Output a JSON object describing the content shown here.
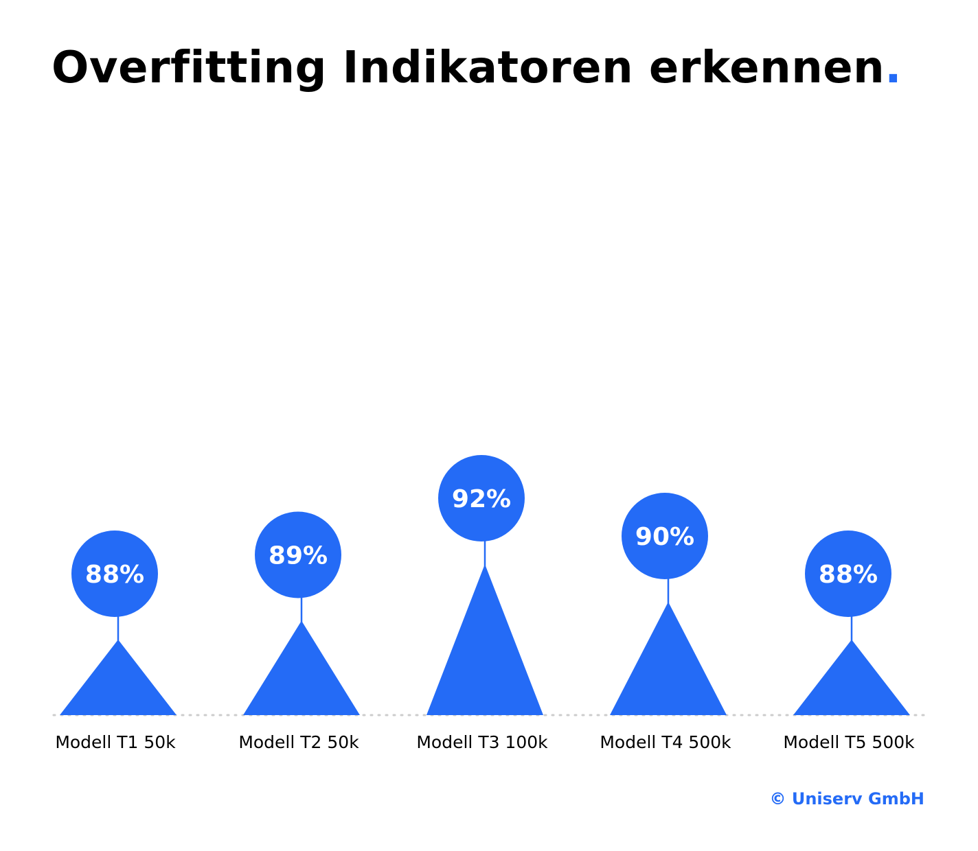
{
  "title": "Overfitting Indikatoren erkennen",
  "title_dot": ".",
  "copyright": "© Uniserv GmbH",
  "colors": {
    "accent": "#246bf6",
    "text": "#000000",
    "baseline": "#cccccc",
    "label_text": "#ffffff"
  },
  "chart_data": {
    "type": "bar",
    "categories": [
      "Modell T1 50k",
      "Modell T2 50k",
      "Modell T3 100k",
      "Modell T4 500k",
      "Modell T5 500k"
    ],
    "values": [
      88,
      89,
      92,
      90,
      88
    ],
    "value_labels": [
      "88%",
      "89%",
      "92%",
      "90%",
      "88%"
    ],
    "grid": false,
    "legend": "none"
  }
}
